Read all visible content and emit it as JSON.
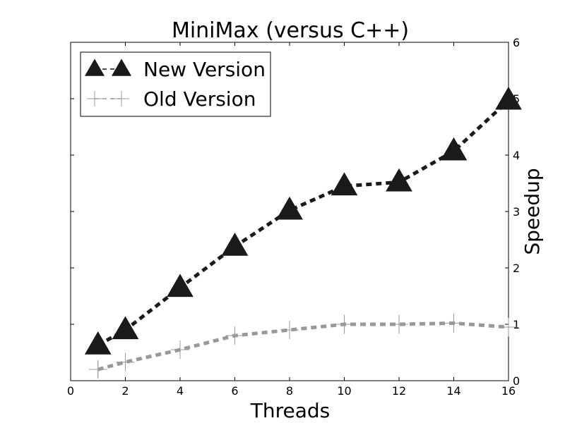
{
  "chart_data": {
    "type": "line",
    "title": "MiniMax (versus C++)",
    "xlabel": "Threads",
    "ylabel": "Speedup",
    "xlim": [
      0,
      16
    ],
    "ylim": [
      0,
      6
    ],
    "xticks": [
      0,
      2,
      4,
      6,
      8,
      10,
      12,
      14,
      16
    ],
    "yticks": [
      0,
      1,
      2,
      3,
      4,
      5,
      6
    ],
    "y_axis_side": "right",
    "grid": false,
    "legend_position": "top-left",
    "series": [
      {
        "name": "New Version",
        "color": "#1a1a1a",
        "marker": "triangle",
        "line_style": "dashed",
        "x": [
          1,
          2,
          4,
          6,
          8,
          10,
          12,
          14,
          16
        ],
        "y": [
          0.63,
          0.9,
          1.65,
          2.38,
          3.02,
          3.45,
          3.52,
          4.07,
          4.97
        ],
        "error": [
          0,
          0,
          0,
          0,
          0,
          0,
          0,
          0,
          0
        ]
      },
      {
        "name": "Old Version",
        "color": "#999999",
        "marker": "plus",
        "line_style": "dashed",
        "x": [
          1,
          2,
          4,
          6,
          8,
          10,
          12,
          14,
          16
        ],
        "y": [
          0.2,
          0.33,
          0.55,
          0.8,
          0.9,
          1.0,
          1.0,
          1.02,
          0.95
        ],
        "error": [
          0.15,
          0.15,
          0.15,
          0.16,
          0.16,
          0.17,
          0.17,
          0.17,
          0.1
        ]
      }
    ]
  }
}
